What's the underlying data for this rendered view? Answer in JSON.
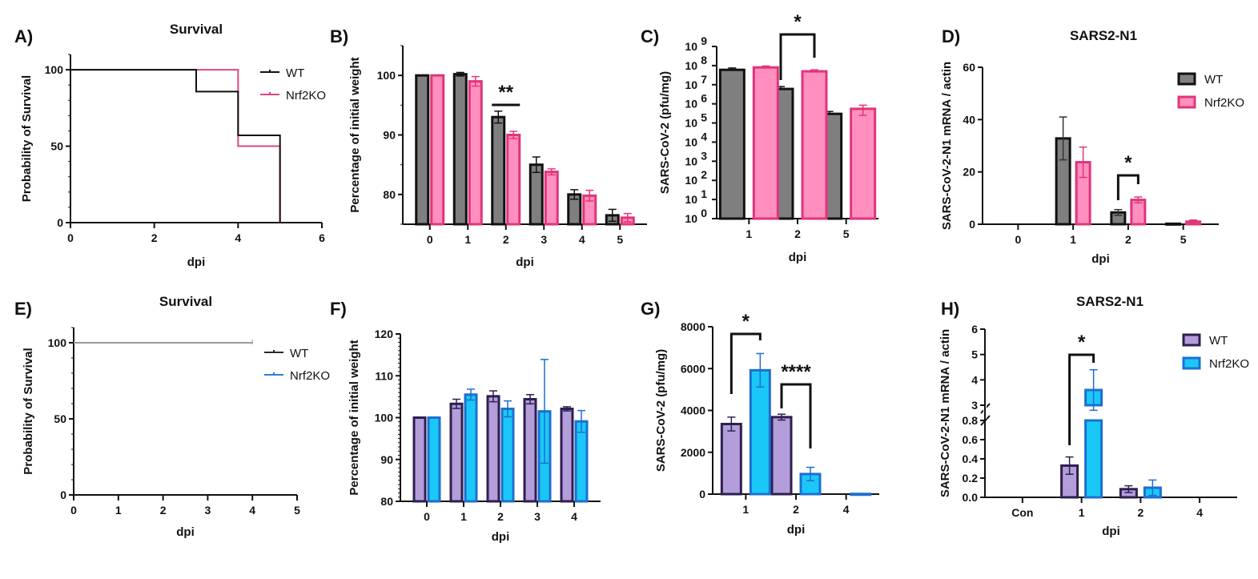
{
  "colors": {
    "wt_top_fill": "#7f7f7f",
    "wt_top_stroke": "#111111",
    "ko_top_fill": "#ff8fbf",
    "ko_top_stroke": "#e0357a",
    "wt_bottom_fill": "#b49ddb",
    "wt_bottom_stroke": "#2e1f4f",
    "ko_bottom_fill": "#1ac8f7",
    "ko_bottom_stroke": "#1e6fd0",
    "ko_survival_line": "#d9488a",
    "ko_survival_line_bottom": "#2f7fd6"
  },
  "chart_data": [
    {
      "panel": "A)",
      "type": "line",
      "subtype": "kaplan-meier",
      "title": "Survival",
      "xlabel": "dpi",
      "ylabel": "Probability of Survival",
      "xlim": [
        0,
        6
      ],
      "ylim": [
        0,
        110
      ],
      "xticks": [
        "0",
        "2",
        "4",
        "6"
      ],
      "yticks": [
        "0",
        "50",
        "100"
      ],
      "legend": "top-right",
      "series": [
        {
          "name": "WT",
          "steps": [
            [
              0,
              100
            ],
            [
              3,
              85.7
            ],
            [
              4,
              57.1
            ],
            [
              5,
              0
            ]
          ]
        },
        {
          "name": "Nrf2KO",
          "steps": [
            [
              0,
              100
            ],
            [
              4,
              50
            ],
            [
              5,
              0
            ]
          ]
        }
      ]
    },
    {
      "panel": "B)",
      "type": "bar",
      "xlabel": "dpi",
      "ylabel": "Percentage of initial weight",
      "ylim": [
        75,
        105
      ],
      "yticks": [
        "80",
        "90",
        "100"
      ],
      "categories": [
        "0",
        "1",
        "2",
        "3",
        "4",
        "5"
      ],
      "series": [
        {
          "name": "WT",
          "values": [
            100,
            100.2,
            93,
            85,
            80,
            76.5
          ],
          "errors": [
            0,
            0.3,
            1,
            1.3,
            0.8,
            1
          ]
        },
        {
          "name": "Nrf2KO",
          "values": [
            100,
            99,
            90,
            83.8,
            79.8,
            76.1
          ],
          "errors": [
            0,
            0.8,
            0.6,
            0.5,
            0.9,
            0.7
          ]
        }
      ],
      "annotations": [
        {
          "text": "**",
          "category": "2",
          "type": "line"
        }
      ]
    },
    {
      "panel": "C)",
      "type": "bar",
      "scale": "log",
      "xlabel": "dpi",
      "ylabel": "SARS-CoV-2 (pfu/mg)",
      "ylim_exp": [
        0,
        9
      ],
      "yticks_exp": [
        "0",
        "1",
        "2",
        "3",
        "4",
        "5",
        "6",
        "7",
        "8",
        "9"
      ],
      "categories": [
        "1",
        "2",
        "5"
      ],
      "series": [
        {
          "name": "WT",
          "values": [
            60000000,
            6000000,
            300000
          ],
          "errors_hi": [
            75000000,
            8000000,
            400000
          ]
        },
        {
          "name": "Nrf2KO",
          "values": [
            80000000,
            50000000,
            550000
          ],
          "errors_hi": [
            95000000,
            60000000,
            850000
          ],
          "errors_lo": [
            80000000,
            50000000,
            250000
          ]
        }
      ],
      "annotations": [
        {
          "text": "*",
          "category": "2",
          "type": "bracket"
        }
      ]
    },
    {
      "panel": "D)",
      "type": "bar",
      "title": "SARS2-N1",
      "xlabel": "dpi",
      "ylabel": "SARS-CoV-2-N1 mRNA / actin",
      "ylim": [
        0,
        60
      ],
      "yticks": [
        "0",
        "20",
        "40",
        "60"
      ],
      "categories": [
        "0",
        "1",
        "2",
        "5"
      ],
      "legend": "top-right",
      "series": [
        {
          "name": "WT",
          "values": [
            0,
            32.8,
            4.5,
            0.2
          ],
          "errors": [
            0,
            8.2,
            1.1,
            0
          ]
        },
        {
          "name": "Nrf2KO",
          "values": [
            0,
            23.7,
            9.3,
            1.0
          ],
          "errors": [
            0,
            5.8,
            1.1,
            0.6
          ]
        }
      ],
      "annotations": [
        {
          "text": "*",
          "category": "2",
          "type": "bracket"
        }
      ]
    },
    {
      "panel": "E)",
      "type": "line",
      "subtype": "kaplan-meier",
      "title": "Survival",
      "xlabel": "dpi",
      "ylabel": "Probability of Survival",
      "xlim": [
        0,
        5
      ],
      "ylim": [
        0,
        110
      ],
      "xticks": [
        "0",
        "1",
        "2",
        "3",
        "4",
        "5"
      ],
      "yticks": [
        "0",
        "50",
        "100"
      ],
      "legend": "right",
      "series": [
        {
          "name": "WT",
          "steps": [
            [
              0,
              100
            ],
            [
              4,
              100
            ]
          ]
        },
        {
          "name": "Nrf2KO",
          "steps": [
            [
              0,
              100
            ],
            [
              4,
              100
            ]
          ]
        }
      ]
    },
    {
      "panel": "F)",
      "type": "bar",
      "xlabel": "dpi",
      "ylabel": "Percentage of initial weight",
      "ylim": [
        80,
        120
      ],
      "yticks": [
        "80",
        "90",
        "100",
        "110",
        "120"
      ],
      "categories": [
        "0",
        "1",
        "2",
        "3",
        "4"
      ],
      "series": [
        {
          "name": "WT",
          "values": [
            100,
            103.3,
            105.1,
            104.4,
            102.1
          ],
          "errors": [
            0,
            1.1,
            1.3,
            1.1,
            0.5
          ]
        },
        {
          "name": "Nrf2KO",
          "values": [
            100,
            105.5,
            102.1,
            101.5,
            99.1
          ],
          "errors": [
            0,
            1.3,
            1.9,
            12.4,
            2.6
          ]
        }
      ]
    },
    {
      "panel": "G)",
      "type": "bar",
      "xlabel": "dpi",
      "ylabel": "SARS-CoV-2 (pfu/mg)",
      "ylim": [
        0,
        8000
      ],
      "yticks": [
        "0",
        "2000",
        "4000",
        "6000",
        "8000"
      ],
      "categories": [
        "1",
        "2",
        "4"
      ],
      "series": [
        {
          "name": "WT",
          "values": [
            3350,
            3680,
            0
          ],
          "errors": [
            330,
            140,
            0
          ]
        },
        {
          "name": "Nrf2KO",
          "values": [
            5920,
            960,
            10
          ],
          "errors": [
            800,
            320,
            0
          ]
        }
      ],
      "annotations": [
        {
          "text": "*",
          "category": "1",
          "type": "bracket"
        },
        {
          "text": "****",
          "category": "2",
          "type": "bracket"
        }
      ]
    },
    {
      "panel": "H)",
      "type": "bar",
      "title": "SARS2-N1",
      "xlabel": "dpi",
      "ylabel": "SARS-CoV-2-N1 mRNA / actin",
      "axis_break": {
        "lower": [
          0,
          0.8
        ],
        "upper": [
          3,
          6
        ]
      },
      "yticks_lower": [
        "0.0",
        "0.2",
        "0.4",
        "0.6",
        "0.8"
      ],
      "yticks_upper": [
        "3",
        "4",
        "5",
        "6"
      ],
      "categories": [
        "Con",
        "1",
        "2",
        "4"
      ],
      "legend": "top-right",
      "series": [
        {
          "name": "WT",
          "values": [
            0,
            0.33,
            0.085,
            0
          ],
          "errors": [
            0,
            0.09,
            0.035,
            0
          ]
        },
        {
          "name": "Nrf2KO",
          "values": [
            0,
            3.6,
            0.1,
            0
          ],
          "errors": [
            0,
            0.8,
            0.08,
            0
          ]
        }
      ],
      "annotations": [
        {
          "text": "*",
          "category": "1",
          "type": "bracket"
        }
      ]
    }
  ]
}
